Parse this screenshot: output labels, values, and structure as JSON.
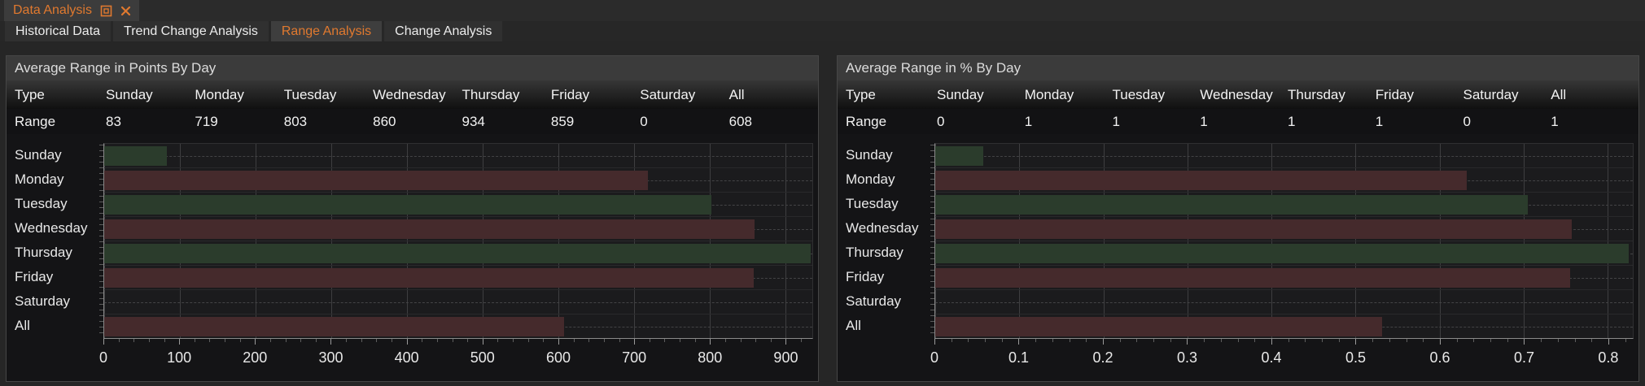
{
  "accent": "#e0792f",
  "doc_tab": {
    "title": "Data Analysis"
  },
  "subtabs": [
    {
      "label": "Historical Data",
      "active": false
    },
    {
      "label": "Trend Change Analysis",
      "active": false
    },
    {
      "label": "Range Analysis",
      "active": true
    },
    {
      "label": "Change Analysis",
      "active": false
    }
  ],
  "colors": {
    "bar_red": "#452a2c",
    "bar_green": "#2b3c2c",
    "plot_bg": "#1b1b1d",
    "header_bg": "#3b3b3b"
  },
  "panels": [
    {
      "title": "Average Range in Points By Day",
      "table": {
        "headers": [
          "Type",
          "Sunday",
          "Monday",
          "Tuesday",
          "Wednesday",
          "Thursday",
          "Friday",
          "Saturday",
          "All"
        ],
        "row_label": "Range",
        "values": [
          "83",
          "719",
          "803",
          "860",
          "934",
          "859",
          "0",
          "608"
        ]
      }
    },
    {
      "title": "Average Range in % By Day",
      "table": {
        "headers": [
          "Type",
          "Sunday",
          "Monday",
          "Tuesday",
          "Wednesday",
          "Thursday",
          "Friday",
          "Saturday",
          "All"
        ],
        "row_label": "Range",
        "values": [
          "0",
          "1",
          "1",
          "1",
          "1",
          "1",
          "0",
          "1"
        ]
      }
    }
  ],
  "chart_data": [
    {
      "type": "bar",
      "orientation": "horizontal",
      "title": "Average Range in Points By Day",
      "categories": [
        "Sunday",
        "Monday",
        "Tuesday",
        "Wednesday",
        "Thursday",
        "Friday",
        "Saturday",
        "All"
      ],
      "values": [
        83,
        719,
        803,
        860,
        934,
        859,
        0,
        608
      ],
      "bar_colors": [
        "green",
        "red",
        "green",
        "red",
        "green",
        "red",
        "none",
        "red"
      ],
      "xlabel": "",
      "ylabel": "",
      "xlim": [
        0,
        936
      ],
      "xticks": [
        0,
        100,
        200,
        300,
        400,
        500,
        600,
        700,
        800,
        900
      ],
      "xminor_step": 20,
      "grid": true,
      "legend": false
    },
    {
      "type": "bar",
      "orientation": "horizontal",
      "title": "Average Range in % By Day",
      "categories": [
        "Sunday",
        "Monday",
        "Tuesday",
        "Wednesday",
        "Thursday",
        "Friday",
        "Saturday",
        "All"
      ],
      "values": [
        0.057,
        0.632,
        0.705,
        0.757,
        0.825,
        0.755,
        0,
        0.532
      ],
      "bar_colors": [
        "green",
        "red",
        "green",
        "red",
        "green",
        "red",
        "none",
        "red"
      ],
      "xlabel": "",
      "ylabel": "",
      "xlim": [
        0,
        0.83
      ],
      "xticks": [
        0,
        0.1,
        0.2,
        0.3,
        0.4,
        0.5,
        0.6,
        0.7,
        0.8
      ],
      "xminor_step": 0.02,
      "grid": true,
      "legend": false
    }
  ]
}
